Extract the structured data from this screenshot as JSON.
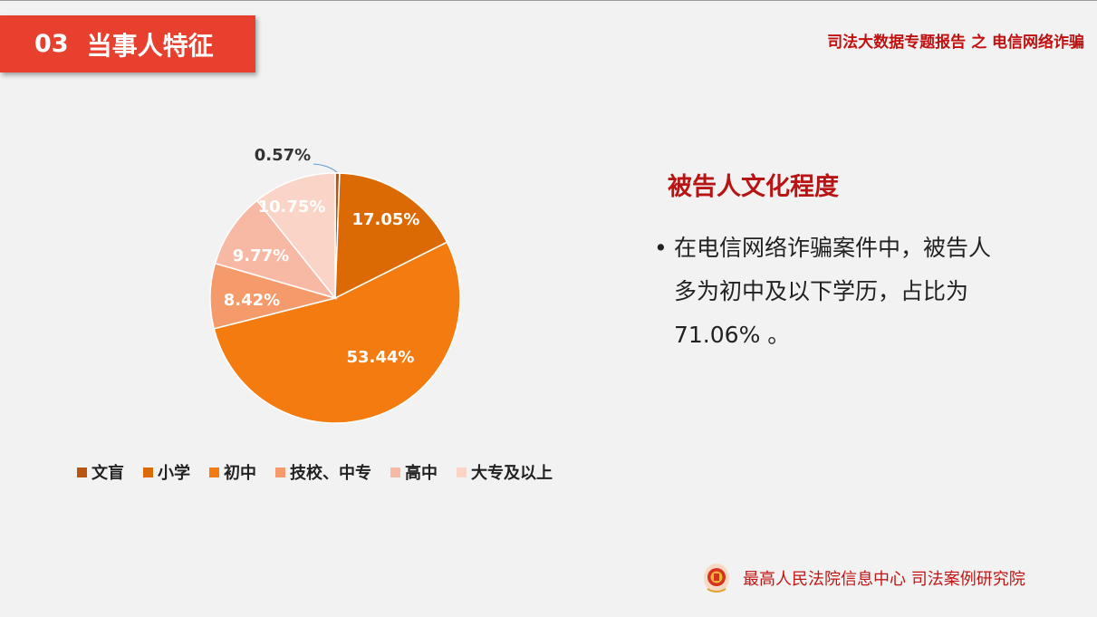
{
  "header": {
    "section_number": "03",
    "section_title": "当事人特征",
    "report_title": "司法大数据专题报告 之 电信网络诈骗"
  },
  "chart_data": {
    "type": "pie",
    "categories": [
      "文盲",
      "小学",
      "初中",
      "技校、中专",
      "高中",
      "大专及以上"
    ],
    "values": [
      0.57,
      17.05,
      53.44,
      8.42,
      9.77,
      10.75
    ],
    "data_labels": [
      "0.57%",
      "17.05%",
      "53.44%",
      "8.42%",
      "9.77%",
      "10.75%"
    ],
    "colors": [
      "#b85510",
      "#dc6a04",
      "#f37b0f",
      "#f59a6a",
      "#f8b9a4",
      "#fbd4c8"
    ],
    "start_angle_deg": 0,
    "direction": "clockwise",
    "legend_position": "bottom"
  },
  "info": {
    "heading": "被告人文化程度",
    "bullet": "在电信网络诈骗案件中，被告人多为初中及以下学历，占比为71.06% 。"
  },
  "footer": {
    "org": "最高人民法院信息中心  司法案例研究院"
  }
}
